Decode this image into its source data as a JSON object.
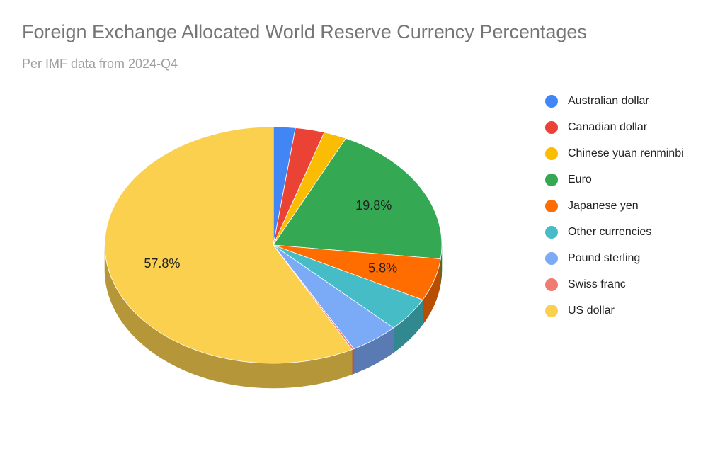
{
  "chart_data": {
    "type": "pie",
    "title": "Foreign Exchange Allocated World Reserve Currency Percentages",
    "subtitle": "Per IMF data from 2024-Q4",
    "legend_position": "right",
    "style": "3d",
    "slices": [
      {
        "name": "Australian dollar",
        "value": 2.1,
        "color": "#4285f4"
      },
      {
        "name": "Canadian dollar",
        "value": 2.8,
        "color": "#ea4335"
      },
      {
        "name": "Chinese yuan renminbi",
        "value": 2.2,
        "color": "#fbbc04"
      },
      {
        "name": "Euro",
        "value": 19.8,
        "color": "#34a853",
        "label": "19.8%"
      },
      {
        "name": "Japanese yen",
        "value": 5.8,
        "color": "#ff6d01",
        "label": "5.8%"
      },
      {
        "name": "Other currencies",
        "value": 4.7,
        "color": "#46bdc6"
      },
      {
        "name": "Pound sterling",
        "value": 4.7,
        "color": "#7baaf7"
      },
      {
        "name": "Swiss franc",
        "value": 0.2,
        "color": "#f07b72"
      },
      {
        "name": "US dollar",
        "value": 57.8,
        "color": "#fcd04f",
        "label": "57.8%"
      }
    ]
  }
}
